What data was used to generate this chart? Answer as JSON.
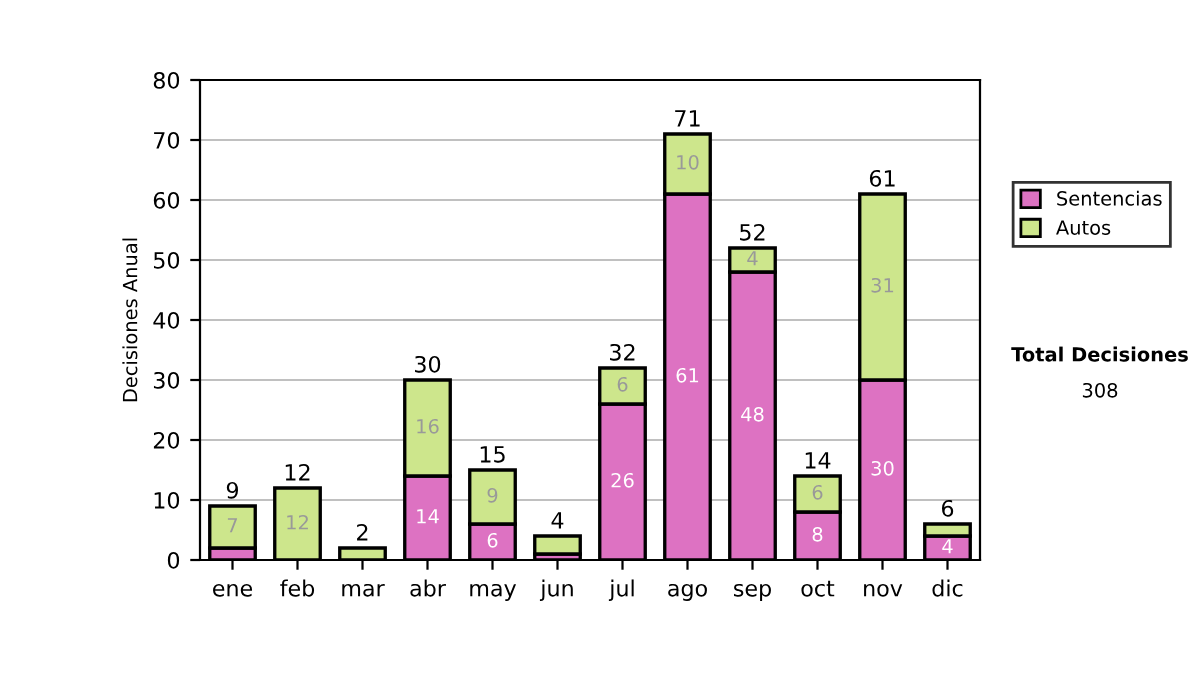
{
  "chart_data": {
    "type": "bar",
    "stacked": true,
    "ylabel": "Decisiones Anual",
    "categories": [
      "ene",
      "feb",
      "mar",
      "abr",
      "may",
      "jun",
      "jul",
      "ago",
      "sep",
      "oct",
      "nov",
      "dic"
    ],
    "series": [
      {
        "name": "Sentencias",
        "color": "#dd72c2",
        "values": [
          2,
          0,
          0,
          14,
          6,
          1,
          26,
          61,
          48,
          8,
          30,
          4
        ],
        "value_labels": [
          null,
          null,
          null,
          "14",
          "6",
          null,
          "26",
          "61",
          "48",
          "8",
          "30",
          "4"
        ]
      },
      {
        "name": "Autos",
        "color": "#cde68c",
        "values": [
          7,
          12,
          2,
          16,
          9,
          3,
          6,
          10,
          4,
          6,
          31,
          2
        ],
        "value_labels": [
          "7",
          "12",
          null,
          "16",
          "9",
          null,
          "6",
          "10",
          "4",
          "6",
          "31",
          null
        ]
      }
    ],
    "totals": [
      "9",
      "12",
      "2",
      "30",
      "15",
      "4",
      "32",
      "71",
      "52",
      "14",
      "61",
      "6"
    ],
    "ylim": [
      0,
      80
    ],
    "yticks": [
      0,
      10,
      20,
      30,
      40,
      50,
      60,
      70,
      80
    ],
    "grid": "y",
    "legend": "right",
    "annotations": [
      "Total Decisiones",
      "308"
    ]
  }
}
